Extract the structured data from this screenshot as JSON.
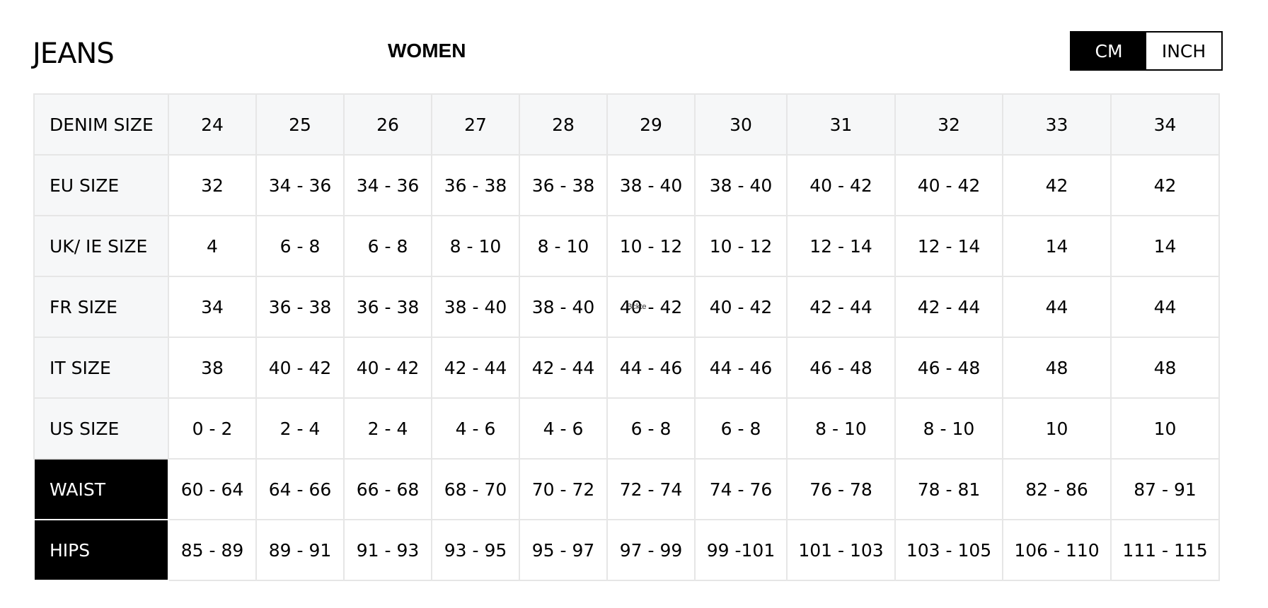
{
  "title": "JEANS",
  "gender": "WOMEN",
  "units": {
    "cm_label": "CM",
    "inch_label": "INCH",
    "selected": "CM"
  },
  "overlay_text": "Bckte",
  "table": {
    "columns": [
      "24",
      "25",
      "26",
      "27",
      "28",
      "29",
      "30",
      "31",
      "32",
      "33",
      "34"
    ],
    "rows": [
      {
        "label": "DENIM SIZE",
        "values": [
          "24",
          "25",
          "26",
          "27",
          "28",
          "29",
          "30",
          "31",
          "32",
          "33",
          "34"
        ]
      },
      {
        "label": "EU SIZE",
        "values": [
          "32",
          "34 - 36",
          "34 - 36",
          "36 - 38",
          "36 - 38",
          "38 - 40",
          "38 - 40",
          "40 - 42",
          "40 - 42",
          "42",
          "42"
        ]
      },
      {
        "label": "UK/ IE SIZE",
        "values": [
          "4",
          "6 - 8",
          "6 - 8",
          "8 - 10",
          "8 - 10",
          "10 - 12",
          "10 - 12",
          "12 - 14",
          "12 - 14",
          "14",
          "14"
        ]
      },
      {
        "label": "FR SIZE",
        "values": [
          "34",
          "36 - 38",
          "36 - 38",
          "38 - 40",
          "38 - 40",
          "40 - 42",
          "40 - 42",
          "42 - 44",
          "42 - 44",
          "44",
          "44"
        ]
      },
      {
        "label": "IT SIZE",
        "values": [
          "38",
          "40 - 42",
          "40 - 42",
          "42 - 44",
          "42 - 44",
          "44 - 46",
          "44 - 46",
          "46 - 48",
          "46 - 48",
          "48",
          "48"
        ]
      },
      {
        "label": "US SIZE",
        "values": [
          "0 - 2",
          "2 - 4",
          "2 - 4",
          "4 - 6",
          "4 - 6",
          "6 - 8",
          "6 - 8",
          "8 - 10",
          "8 - 10",
          "10",
          "10"
        ]
      },
      {
        "label": "WAIST",
        "values": [
          "60 - 64",
          "64 - 66",
          "66 - 68",
          "68 - 70",
          "70 - 72",
          "72 - 74",
          "74 - 76",
          "76 - 78",
          "78 - 81",
          "82 - 86",
          "87 - 91"
        ]
      },
      {
        "label": "HIPS",
        "values": [
          "85 - 89",
          "89 - 91",
          "91 - 93",
          "93 - 95",
          "95 - 97",
          "97 - 99",
          "99 -101",
          "101 - 103",
          "103 - 105",
          "106 - 110",
          "111 - 115"
        ]
      }
    ]
  }
}
